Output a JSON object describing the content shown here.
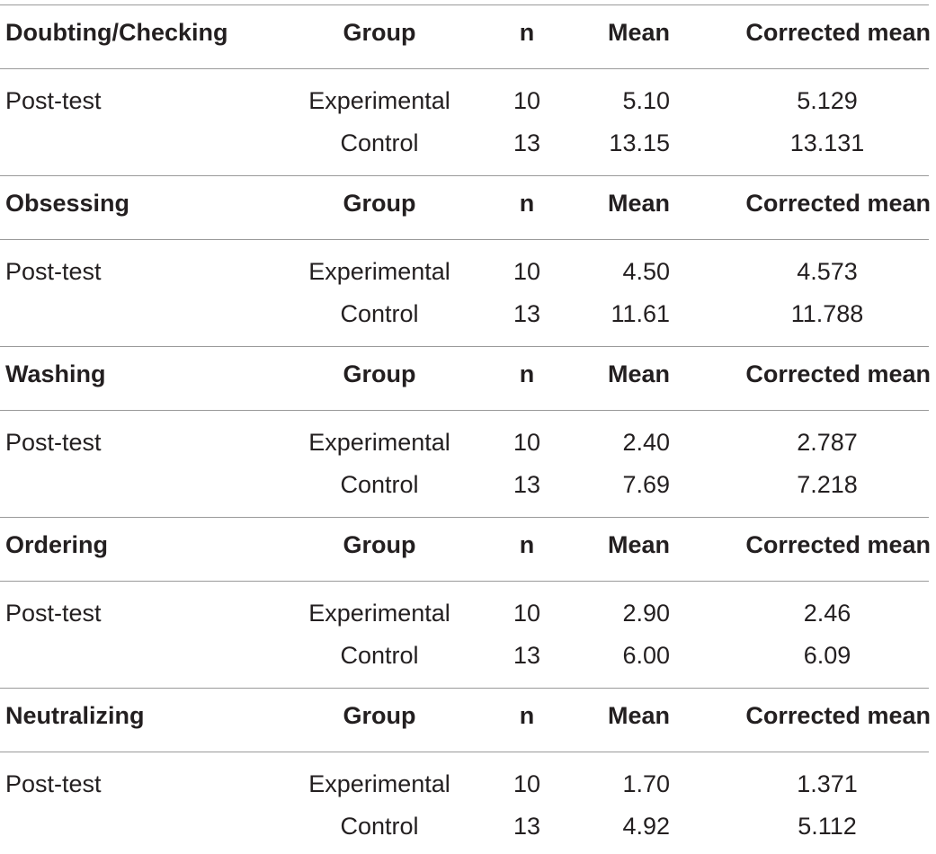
{
  "columns": {
    "group": "Group",
    "n": "n",
    "mean": "Mean",
    "corrected_mean": "Corrected mean"
  },
  "sections": [
    {
      "title": "Doubting/Checking",
      "rows": [
        {
          "test": "Post-test",
          "group": "Experimental",
          "n": "10",
          "mean": "5.10",
          "corrected_mean": "5.129"
        },
        {
          "test": "",
          "group": "Control",
          "n": "13",
          "mean": "13.15",
          "corrected_mean": "13.131"
        }
      ]
    },
    {
      "title": "Obsessing",
      "rows": [
        {
          "test": "Post-test",
          "group": "Experimental",
          "n": "10",
          "mean": "4.50",
          "corrected_mean": "4.573"
        },
        {
          "test": "",
          "group": "Control",
          "n": "13",
          "mean": "11.61",
          "corrected_mean": "11.788"
        }
      ]
    },
    {
      "title": "Washing",
      "rows": [
        {
          "test": "Post-test",
          "group": "Experimental",
          "n": "10",
          "mean": "2.40",
          "corrected_mean": "2.787"
        },
        {
          "test": "",
          "group": "Control",
          "n": "13",
          "mean": "7.69",
          "corrected_mean": "7.218"
        }
      ]
    },
    {
      "title": "Ordering",
      "rows": [
        {
          "test": "Post-test",
          "group": "Experimental",
          "n": "10",
          "mean": "2.90",
          "corrected_mean": "2.46"
        },
        {
          "test": "",
          "group": "Control",
          "n": "13",
          "mean": "6.00",
          "corrected_mean": "6.09"
        }
      ]
    },
    {
      "title": "Neutralizing",
      "rows": [
        {
          "test": "Post-test",
          "group": "Experimental",
          "n": "10",
          "mean": "1.70",
          "corrected_mean": "1.371"
        },
        {
          "test": "",
          "group": "Control",
          "n": "13",
          "mean": "4.92",
          "corrected_mean": "5.112"
        }
      ]
    }
  ]
}
